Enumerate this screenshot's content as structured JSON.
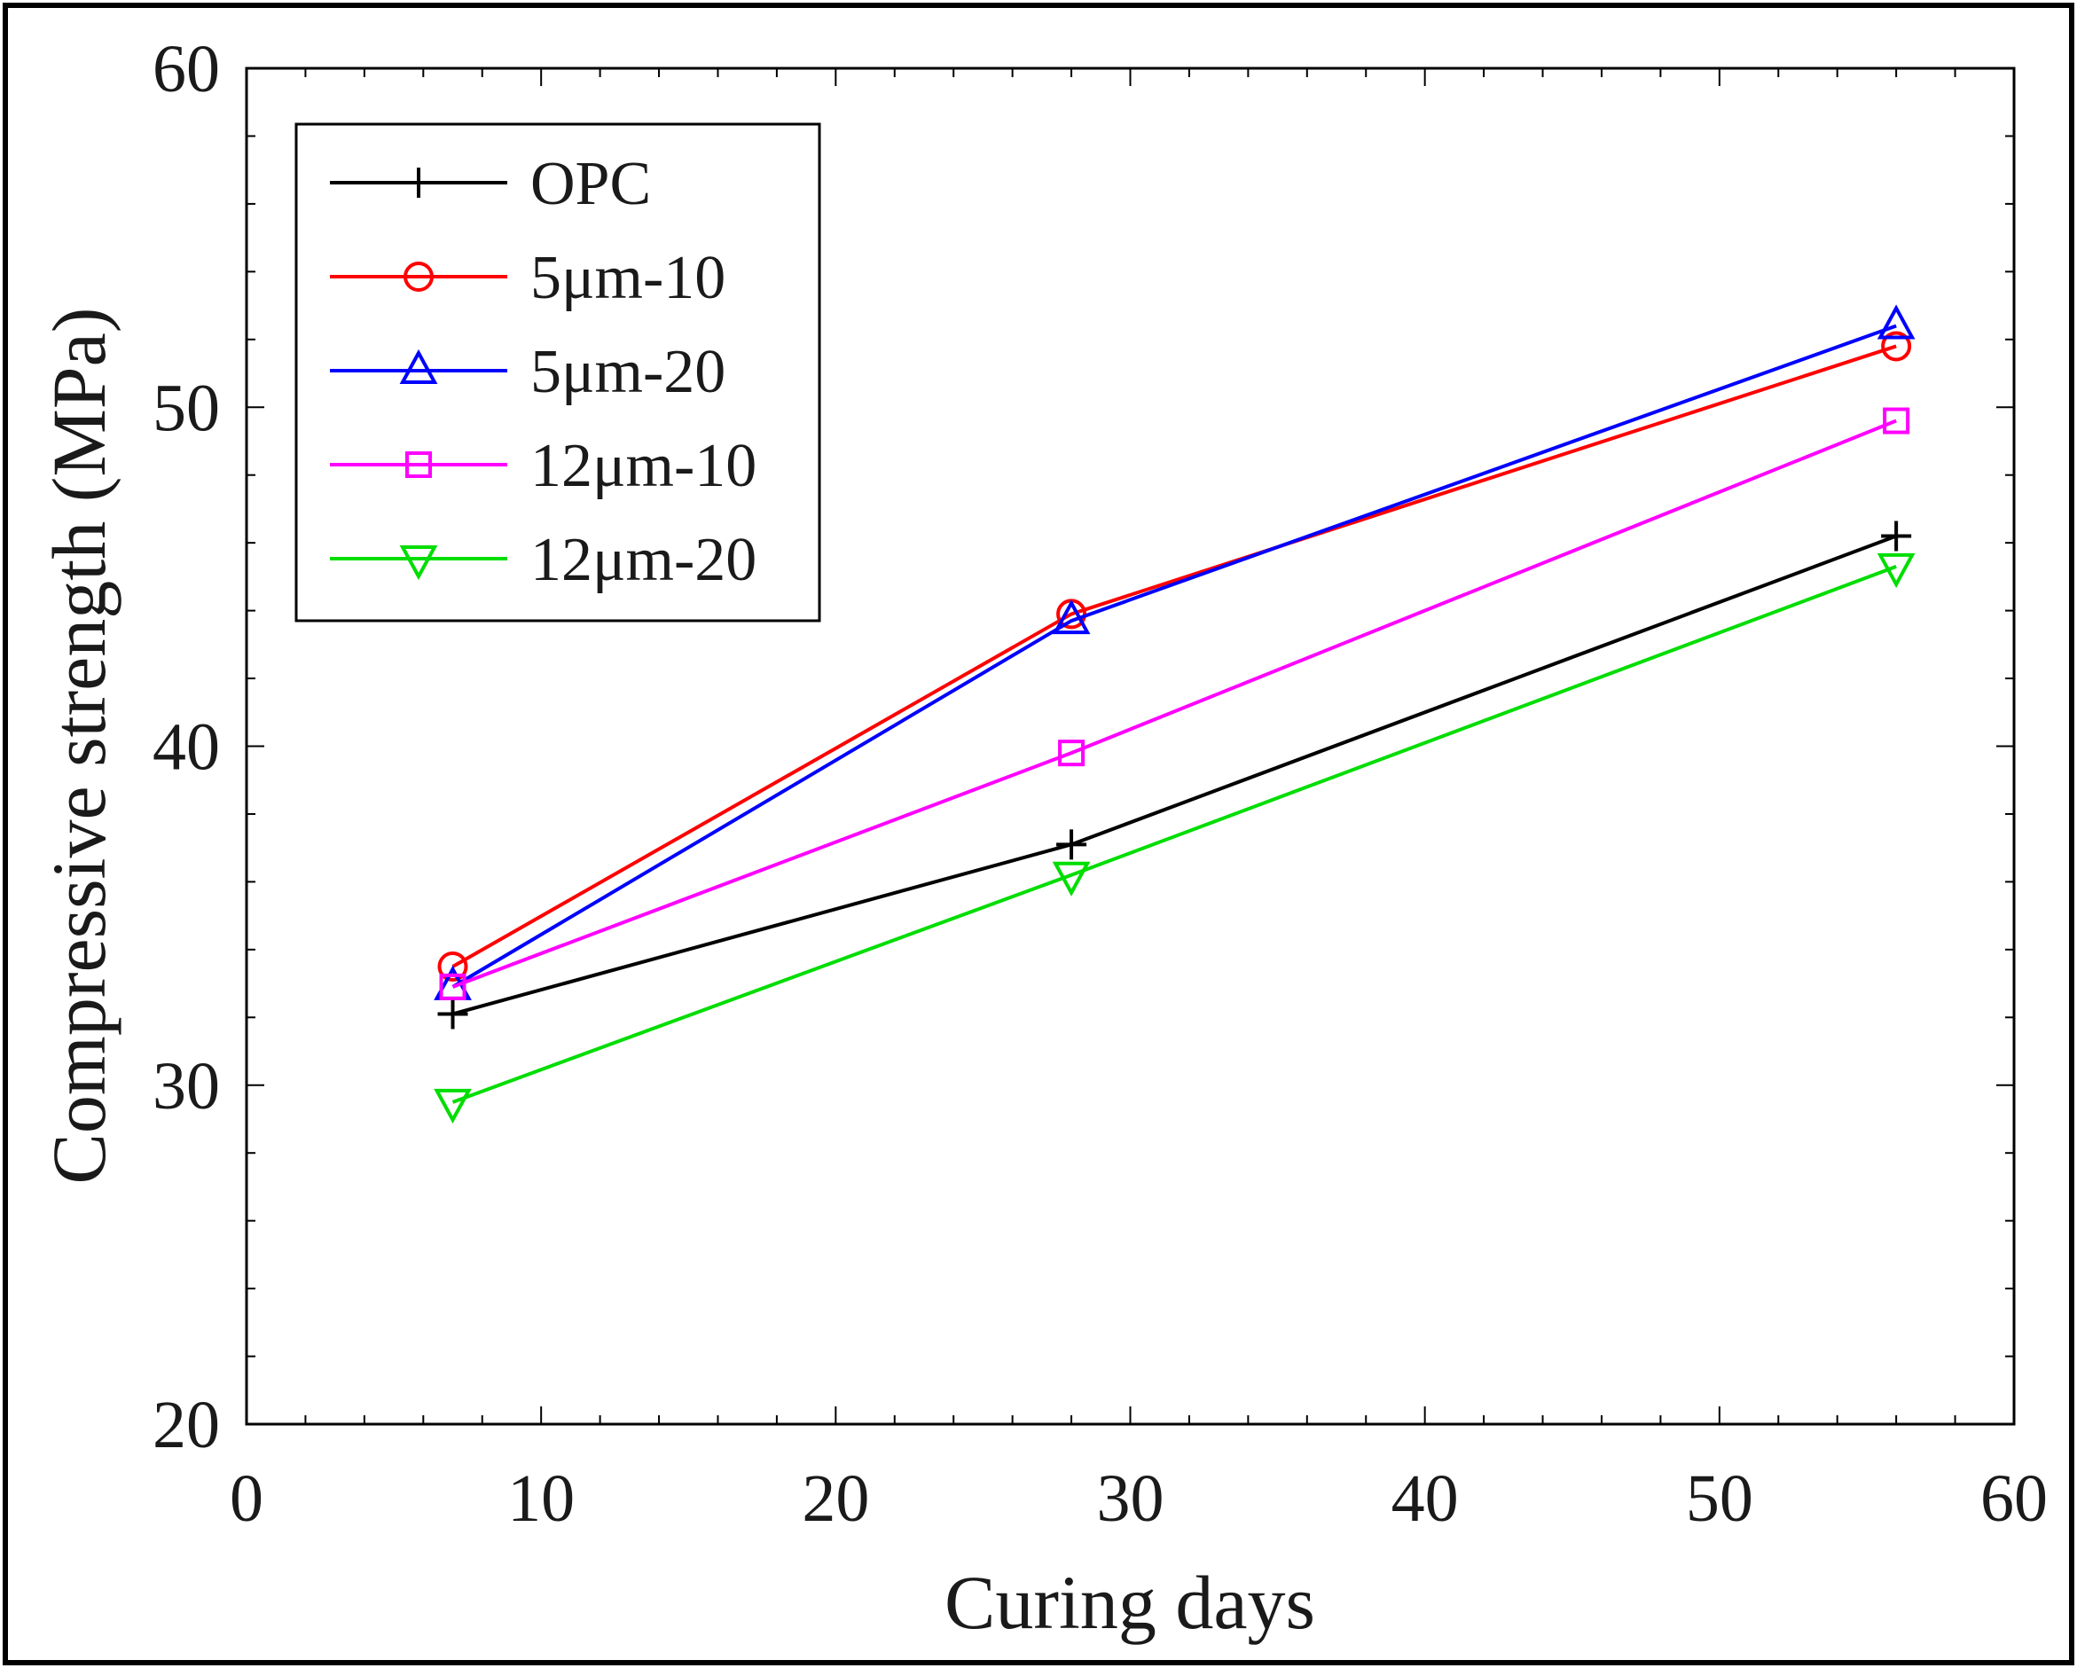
{
  "chart_data": {
    "type": "line",
    "xlabel": "Curing days",
    "ylabel": "Compressive strength (MPa)",
    "xlim": [
      0,
      60
    ],
    "ylim": [
      20,
      60
    ],
    "x_ticks": [
      0,
      10,
      20,
      30,
      40,
      50,
      60
    ],
    "y_ticks": [
      20,
      30,
      40,
      50,
      60
    ],
    "x_tick_labels": [
      "0",
      "10",
      "20",
      "30",
      "40",
      "50",
      "60"
    ],
    "y_tick_labels": [
      "20",
      "30",
      "40",
      "50",
      "60"
    ],
    "grid": false,
    "legend_position": "top-left",
    "x": [
      7,
      28,
      56
    ],
    "series": [
      {
        "name": "OPC",
        "values": [
          32.1,
          37.1,
          46.2
        ],
        "color": "#000000",
        "marker": "plus"
      },
      {
        "name": "5μm-10",
        "values": [
          33.5,
          43.9,
          51.8
        ],
        "color": "#ff0000",
        "marker": "circle"
      },
      {
        "name": "5μm-20",
        "values": [
          32.9,
          43.7,
          52.4
        ],
        "color": "#0000ff",
        "marker": "triangle-up"
      },
      {
        "name": "12μm-10",
        "values": [
          32.9,
          39.8,
          49.6
        ],
        "color": "#ff00ff",
        "marker": "square"
      },
      {
        "name": "12μm-20",
        "values": [
          29.5,
          36.2,
          45.3
        ],
        "color": "#00dd00",
        "marker": "triangle-down"
      }
    ]
  }
}
